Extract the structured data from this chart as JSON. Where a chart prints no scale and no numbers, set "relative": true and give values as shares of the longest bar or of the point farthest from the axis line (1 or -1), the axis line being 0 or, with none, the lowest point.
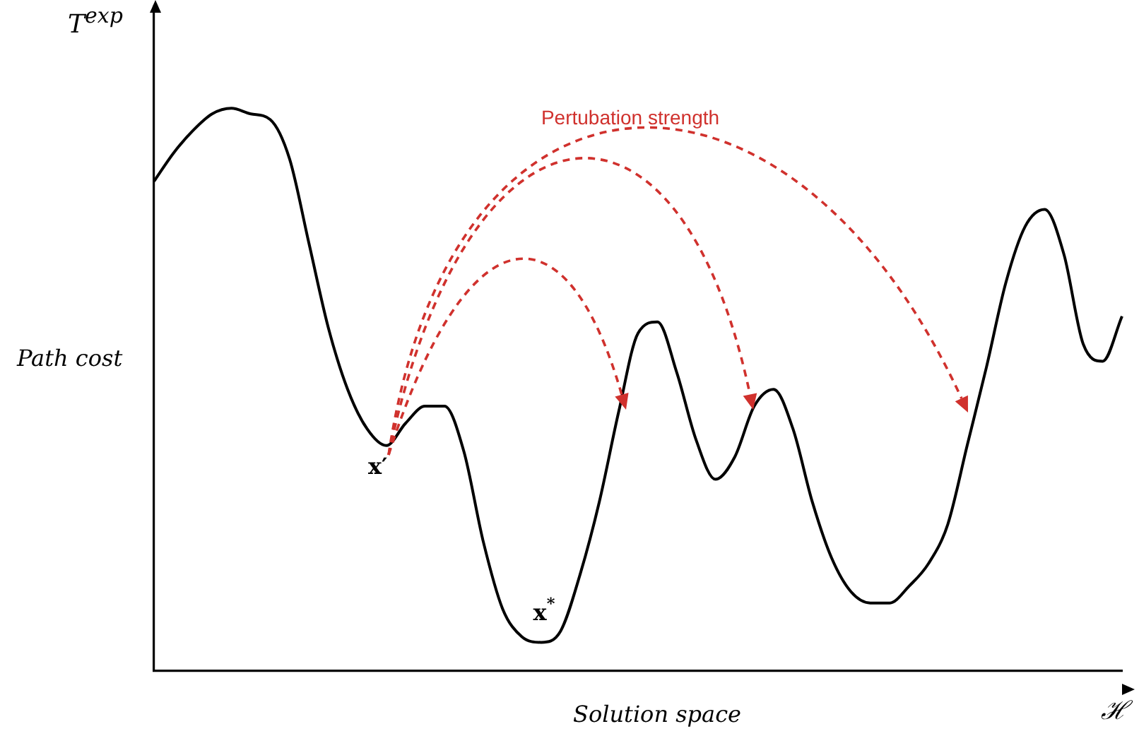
{
  "chart_data": {
    "type": "line",
    "relative": true,
    "xlabel": "Solution space",
    "ylabel": "Path cost",
    "legend": false,
    "marker": "none",
    "line_style": "solid",
    "annotations": [
      "T$^{exp}$",
      "ℋ",
      "Pertubation strength",
      {
        "text": "x′",
        "y": 0.4
      },
      {
        "text": "x$^{*}$",
        "y": 0.05
      }
    ],
    "categories": [
      null,
      null,
      null,
      null,
      null,
      null,
      null,
      null,
      null,
      null,
      null,
      null,
      null,
      null,
      null,
      null,
      null,
      null,
      null,
      null,
      null,
      null,
      null,
      null,
      null,
      null,
      null,
      null,
      null,
      null,
      null,
      null,
      null,
      null,
      null,
      null,
      null,
      null,
      null,
      null,
      null,
      null,
      null,
      null,
      null,
      null,
      null,
      null,
      null,
      null,
      null
    ],
    "series": [
      {
        "color": "#000000",
        "values": [
          0.87,
          0.92,
          0.96,
          0.99,
          1,
          0.99,
          0.98,
          0.91,
          0.76,
          0.61,
          0.5,
          0.43,
          0.4,
          0.44,
          0.47,
          0.47,
          0.39,
          0.23,
          0.11,
          0.06,
          0.05,
          0.07,
          0.17,
          0.3,
          0.46,
          0.6,
          0.62,
          0.53,
          0.41,
          0.34,
          0.38,
          0.47,
          0.5,
          0.43,
          0.3,
          0.2,
          0.14,
          0.12,
          0.12,
          0.15,
          0.19,
          0.26,
          0.4,
          0.54,
          0.69,
          0.79,
          0.82,
          0.74,
          0.58,
          0.55,
          0.63
        ]
      }
    ]
  }
}
